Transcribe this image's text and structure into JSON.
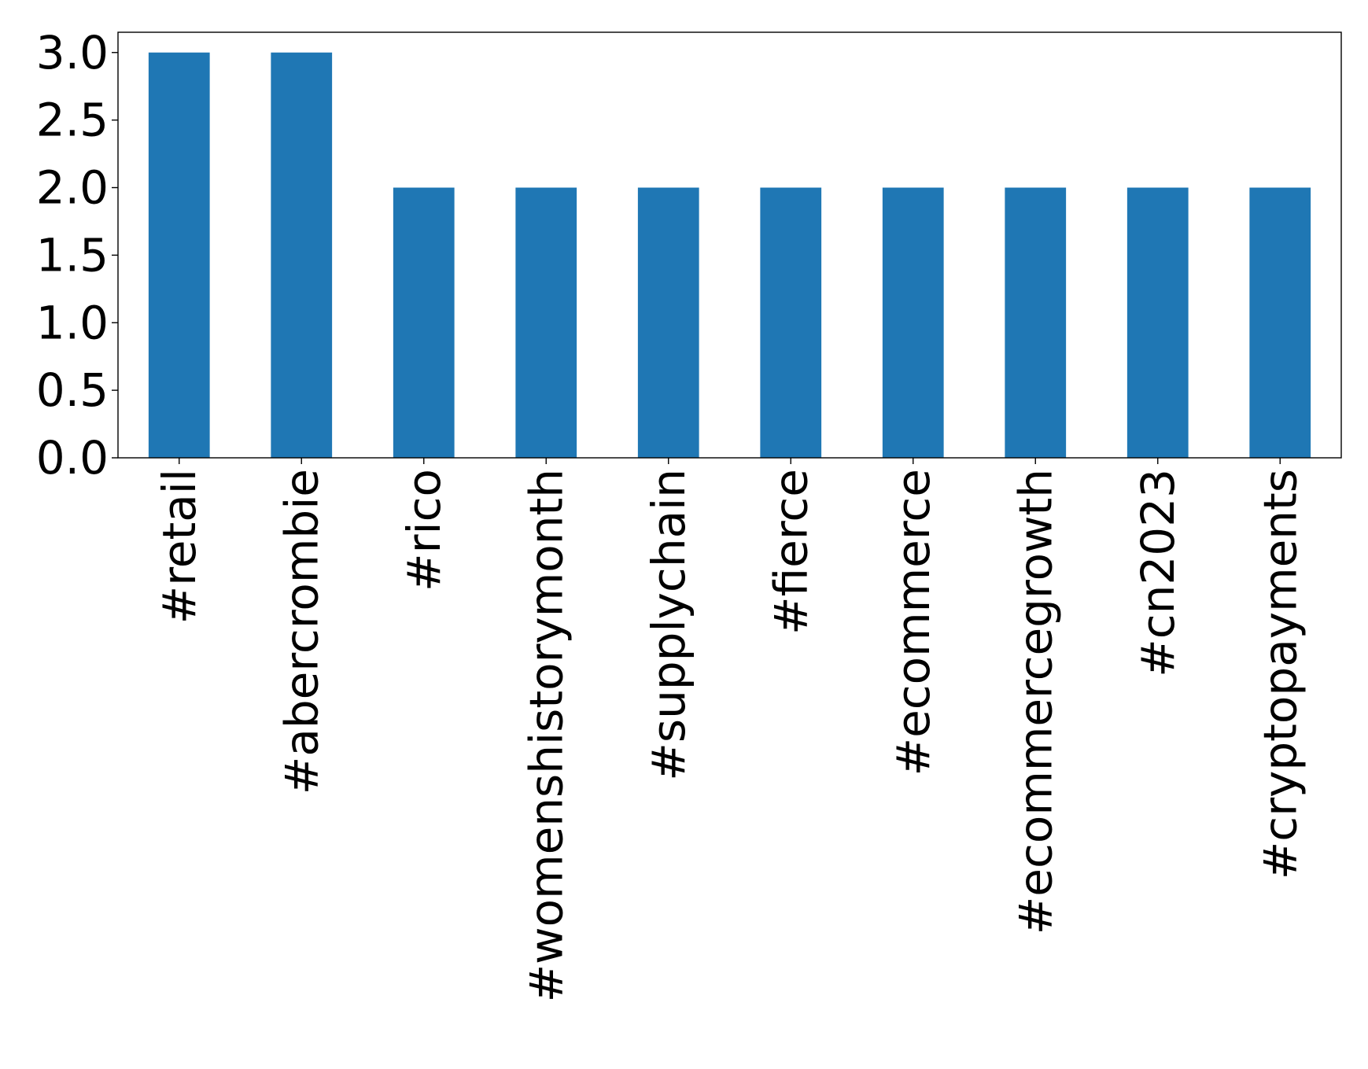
{
  "chart_data": {
    "type": "bar",
    "categories": [
      "#retail",
      "#abercrombie",
      "#rico",
      "#womenshistorymonth",
      "#supplychain",
      "#fierce",
      "#ecommerce",
      "#ecommercegrowth",
      "#cn2023",
      "#cryptopayments"
    ],
    "values": [
      3,
      3,
      2,
      2,
      2,
      2,
      2,
      2,
      2,
      2
    ],
    "title": "",
    "xlabel": "",
    "ylabel": "",
    "ylim": [
      0,
      3.15
    ],
    "yticks": [
      "0.0",
      "0.5",
      "1.0",
      "1.5",
      "2.0",
      "2.5",
      "3.0"
    ],
    "bar_color": "#1f77b4",
    "grid": false,
    "x_tick_rotation": "vertical"
  }
}
